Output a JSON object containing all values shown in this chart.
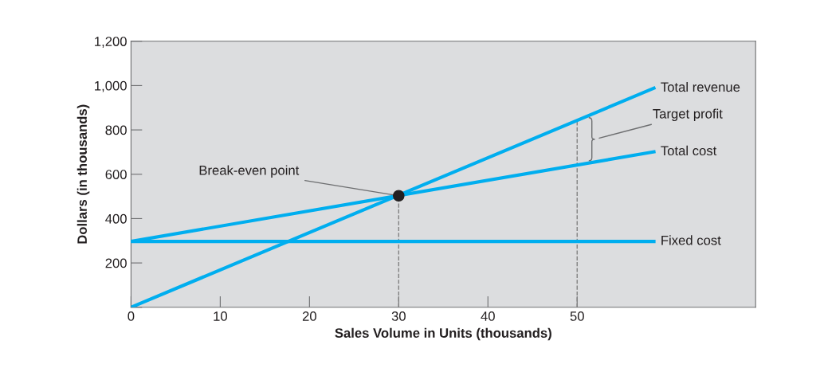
{
  "chart_data": {
    "type": "line",
    "xlabel": "Sales Volume in Units (thousands)",
    "ylabel": "Dollars (in thousands)",
    "xlim": [
      0,
      70
    ],
    "ylim": [
      0,
      1200
    ],
    "xticks": [
      0,
      10,
      20,
      30,
      40,
      50
    ],
    "yticks": [
      {
        "value": 0,
        "label": null
      },
      200,
      400,
      600,
      800,
      {
        "value": 1000,
        "label": "1,000"
      },
      {
        "value": 1200,
        "label": "1,200"
      }
    ],
    "grid": false,
    "marker": "none",
    "line_style": "solid",
    "series": [
      {
        "name": "Total revenue",
        "color": "#00aeef",
        "x": [
          0,
          58.6
        ],
        "values": [
          0,
          988
        ]
      },
      {
        "name": "Total cost",
        "color": "#00aeef",
        "x": [
          0,
          58.6
        ],
        "values": [
          297,
          701
        ]
      },
      {
        "name": "Fixed cost",
        "color": "#00aeef",
        "x": [
          0,
          58.6
        ],
        "values": [
          297,
          297
        ]
      },
      {
        "type": "scatter",
        "marker": "circle",
        "color": "#231f20",
        "x": [
          30
        ],
        "values": [
          503
        ]
      }
    ],
    "ref_lines": [
      {
        "axis": "x",
        "value": 30,
        "color": "#808080",
        "line_style": "dashed"
      },
      {
        "axis": "x",
        "value": 50,
        "color": "#808080",
        "line_style": "dashed"
      }
    ],
    "annotations": [
      {
        "text": "Break-even point",
        "x": 30,
        "y": 503
      },
      "Target profit"
    ]
  }
}
